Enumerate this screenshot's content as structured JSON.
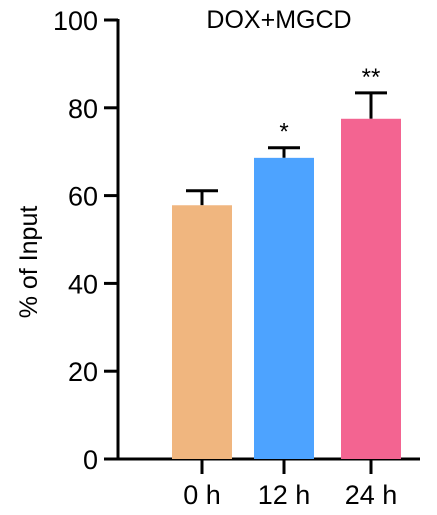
{
  "chart_data": {
    "type": "bar",
    "title": "DOX+MGCD",
    "xlabel": "",
    "ylabel": "% of Input",
    "ylim": [
      0,
      100
    ],
    "yticks": [
      "0",
      "20",
      "40",
      "60",
      "80",
      "100"
    ],
    "categories": [
      "0 h",
      "12 h",
      "24 h"
    ],
    "values": [
      57.8,
      68.6,
      77.5
    ],
    "errors": [
      3.3,
      2.3,
      5.9
    ],
    "colors": [
      "#F0B67F",
      "#4DA3FF",
      "#F36491"
    ],
    "significance": [
      "",
      "*",
      "**"
    ],
    "grid": false
  }
}
